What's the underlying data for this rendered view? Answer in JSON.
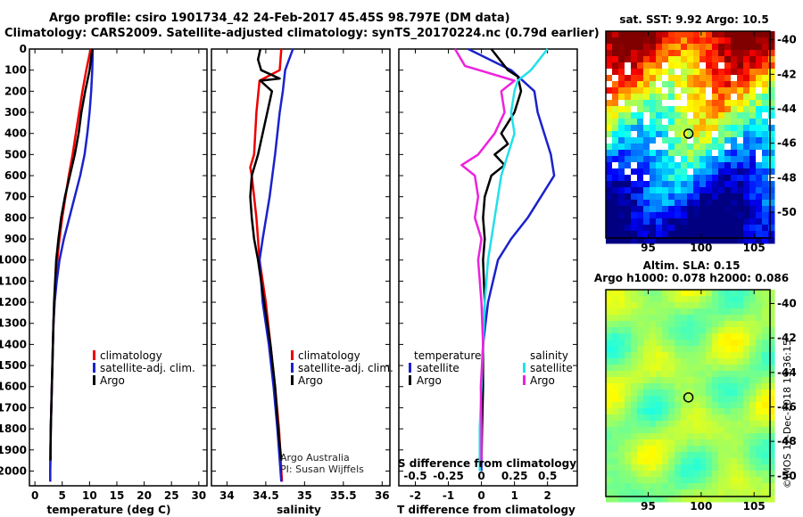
{
  "header": {
    "title_line1": "Argo profile: csiro 1901734_42 24-Feb-2017 45.45S 98.797E (DM data)",
    "title_line2": "Climatology: CARS2009. Satellite-adjusted climatology: synTS_20170224.nc (0.79d earlier)"
  },
  "colors": {
    "climatology": "#ee0000",
    "satellite": "#1a22cc",
    "argo": "#000000",
    "t_satellite": "#1a22cc",
    "s_satellite": "#22e0e8",
    "s_argo": "#ee22dd"
  },
  "chart_data": [
    {
      "type": "line",
      "id": "temperature",
      "xlabel": "temperature (deg C)",
      "ylabel": "",
      "xlim": [
        -1,
        31.5
      ],
      "ylim": [
        2070,
        0
      ],
      "xticks": [
        0,
        5,
        10,
        15,
        20,
        25,
        30
      ],
      "yticks": [
        0,
        100,
        200,
        300,
        400,
        500,
        600,
        700,
        800,
        900,
        1000,
        1100,
        1200,
        1300,
        1400,
        1500,
        1600,
        1700,
        1800,
        1900,
        2000
      ],
      "legend": [
        "climatology",
        "satellite-adj. clim.",
        "Argo"
      ],
      "series": [
        {
          "name": "climatology",
          "color": "#ee0000",
          "depth": [
            0,
            100,
            200,
            300,
            400,
            500,
            600,
            700,
            800,
            900,
            1000,
            1100,
            1200,
            1300,
            1400,
            1500,
            1600,
            1700,
            1800,
            1900,
            2000,
            2050
          ],
          "values": [
            10.2,
            9.4,
            8.7,
            8.1,
            7.5,
            6.9,
            6.2,
            5.6,
            5.0,
            4.5,
            4.1,
            3.8,
            3.6,
            3.4,
            3.3,
            3.2,
            3.1,
            3.0,
            2.9,
            2.85,
            2.8,
            2.8
          ]
        },
        {
          "name": "satellite-adj. clim.",
          "color": "#1a22cc",
          "depth": [
            0,
            100,
            200,
            300,
            400,
            500,
            600,
            700,
            800,
            900,
            1000,
            1100,
            1200,
            1300,
            1400,
            1500,
            1600,
            1700,
            1800,
            1900,
            2000,
            2050
          ],
          "values": [
            10.6,
            10.5,
            10.3,
            10.0,
            9.6,
            9.1,
            8.3,
            7.3,
            6.3,
            5.3,
            4.5,
            4.0,
            3.6,
            3.4,
            3.3,
            3.2,
            3.1,
            3.0,
            2.9,
            2.85,
            2.8,
            2.8
          ]
        },
        {
          "name": "Argo",
          "color": "#000000",
          "depth": [
            0,
            100,
            200,
            300,
            400,
            500,
            600,
            700,
            800,
            900,
            1000,
            1100,
            1200,
            1300,
            1400,
            1500,
            1600,
            1700,
            1800,
            1900,
            1950
          ],
          "values": [
            10.5,
            10.0,
            9.2,
            8.5,
            8.0,
            7.3,
            6.4,
            5.5,
            4.8,
            4.3,
            3.9,
            3.7,
            3.5,
            3.4,
            3.3,
            3.2,
            3.1,
            3.0,
            2.9,
            2.85,
            2.85
          ]
        }
      ]
    },
    {
      "type": "line",
      "id": "salinity",
      "xlabel": "salinity",
      "xlim": [
        33.8,
        36.1
      ],
      "ylim": [
        2070,
        0
      ],
      "xticks": [
        34,
        34.5,
        35,
        35.5,
        36
      ],
      "legend": [
        "climatology",
        "satellite-adj. clim.",
        "Argo"
      ],
      "series": [
        {
          "name": "climatology",
          "color": "#ee0000",
          "depth": [
            0,
            100,
            150,
            300,
            500,
            560,
            600,
            800,
            1000,
            1200,
            1400,
            1600,
            1800,
            2000,
            2050
          ],
          "values": [
            34.7,
            34.68,
            34.42,
            34.38,
            34.35,
            34.3,
            34.32,
            34.38,
            34.42,
            34.5,
            34.56,
            34.62,
            34.67,
            34.7,
            34.71
          ]
        },
        {
          "name": "satellite-adj. clim.",
          "color": "#1a22cc",
          "depth": [
            0,
            100,
            200,
            300,
            500,
            700,
            900,
            1000,
            1200,
            1400,
            1600,
            1800,
            2000,
            2050
          ],
          "values": [
            34.85,
            34.75,
            34.72,
            34.68,
            34.62,
            34.55,
            34.46,
            34.42,
            34.46,
            34.54,
            34.6,
            34.65,
            34.69,
            34.7
          ]
        },
        {
          "name": "Argo",
          "color": "#000000",
          "depth": [
            0,
            50,
            100,
            140,
            150,
            200,
            300,
            400,
            500,
            600,
            700,
            800,
            900,
            1000,
            1200,
            1400,
            1600,
            1800,
            1950
          ],
          "values": [
            34.43,
            34.4,
            34.44,
            34.68,
            34.43,
            34.58,
            34.52,
            34.46,
            34.4,
            34.32,
            34.3,
            34.32,
            34.35,
            34.4,
            34.48,
            34.56,
            34.62,
            34.66,
            34.7
          ]
        }
      ],
      "annotation_line1": "Argo Australia",
      "annotation_line2": "PI: Susan Wijffels"
    },
    {
      "type": "line",
      "id": "differences",
      "xlabel": "T difference from climatology",
      "top_axis_label": "S difference from climatology",
      "xlim": [
        -2.5,
        2.9
      ],
      "ylim": [
        2070,
        0
      ],
      "xticks": [
        -2,
        -1,
        0,
        1,
        2
      ],
      "top_xticks": [
        "-0.5",
        "-0.25",
        "0",
        "0.25",
        "0.5"
      ],
      "top_xtick_values": [
        -2,
        -1,
        0,
        1,
        2
      ],
      "legend_left_title": "temperature",
      "legend_right_title": "salinity",
      "legend_left": [
        "satellite",
        "Argo"
      ],
      "legend_right": [
        "satellite",
        "Argo"
      ],
      "series": [
        {
          "name": "T satellite",
          "color": "#1a22cc",
          "depth": [
            0,
            100,
            200,
            300,
            400,
            500,
            600,
            700,
            800,
            900,
            1000,
            1200,
            1400,
            1600,
            1800,
            2000
          ],
          "values": [
            -0.4,
            0.9,
            1.6,
            1.7,
            1.9,
            2.1,
            2.2,
            1.8,
            1.4,
            0.9,
            0.5,
            0.2,
            0.05,
            0.02,
            0.0,
            0.0
          ]
        },
        {
          "name": "T Argo",
          "color": "#000000",
          "depth": [
            0,
            100,
            130,
            200,
            300,
            400,
            450,
            500,
            550,
            600,
            700,
            800,
            900,
            1000,
            1200,
            1400,
            1600,
            1800,
            1950
          ],
          "values": [
            0.3,
            0.8,
            1.1,
            1.2,
            1.0,
            0.6,
            0.8,
            0.4,
            0.7,
            0.3,
            0.1,
            0.05,
            0.1,
            0.05,
            0.1,
            0.05,
            0.05,
            0.02,
            0.0
          ]
        },
        {
          "name": "S satellite",
          "color": "#22e0e8",
          "depth": [
            0,
            100,
            150,
            200,
            300,
            400,
            500,
            600,
            700,
            800,
            900,
            1000,
            1200,
            1400,
            1600,
            1800,
            2000
          ],
          "values": [
            2.0,
            1.5,
            1.1,
            1.0,
            0.9,
            1.0,
            0.8,
            0.6,
            0.5,
            0.4,
            0.3,
            0.2,
            0.1,
            0.05,
            0.0,
            -0.05,
            -0.05
          ]
        },
        {
          "name": "S Argo",
          "color": "#ee22dd",
          "depth": [
            0,
            80,
            150,
            200,
            300,
            400,
            500,
            550,
            600,
            700,
            800,
            900,
            1000,
            1200,
            1400,
            1600,
            1800,
            1950
          ],
          "values": [
            -0.8,
            -0.5,
            1.0,
            0.6,
            0.7,
            0.4,
            -0.1,
            -0.6,
            -0.2,
            -0.1,
            -0.2,
            0.0,
            -0.1,
            0.0,
            0.05,
            -0.02,
            0.0,
            0.0
          ]
        }
      ]
    },
    {
      "type": "heatmap",
      "id": "sst_map",
      "title": "sat. SST: 9.92 Argo: 10.5",
      "xticks": [
        95,
        100,
        105
      ],
      "yticks": [
        -40,
        -42,
        -44,
        -46,
        -48,
        -50
      ],
      "xlim": [
        91,
        106.5
      ],
      "ylim": [
        -51.5,
        -39.5
      ],
      "marker": {
        "lon": 98.8,
        "lat": -45.45
      }
    },
    {
      "type": "heatmap",
      "id": "sla_map",
      "title_line1": "Altim. SLA: 0.15",
      "title_line2": "Argo h1000: 0.078 h2000: 0.086",
      "xticks": [
        95,
        100,
        105
      ],
      "yticks": [
        -40,
        -42,
        -44,
        -46,
        -48,
        -50
      ],
      "xlim": [
        91,
        106.5
      ],
      "ylim": [
        -51.2,
        -39.2
      ],
      "marker": {
        "lon": 98.8,
        "lat": -45.45
      }
    }
  ],
  "footer": {
    "stamp": "©IMOS 12-Dec-2018 19:36:15"
  }
}
